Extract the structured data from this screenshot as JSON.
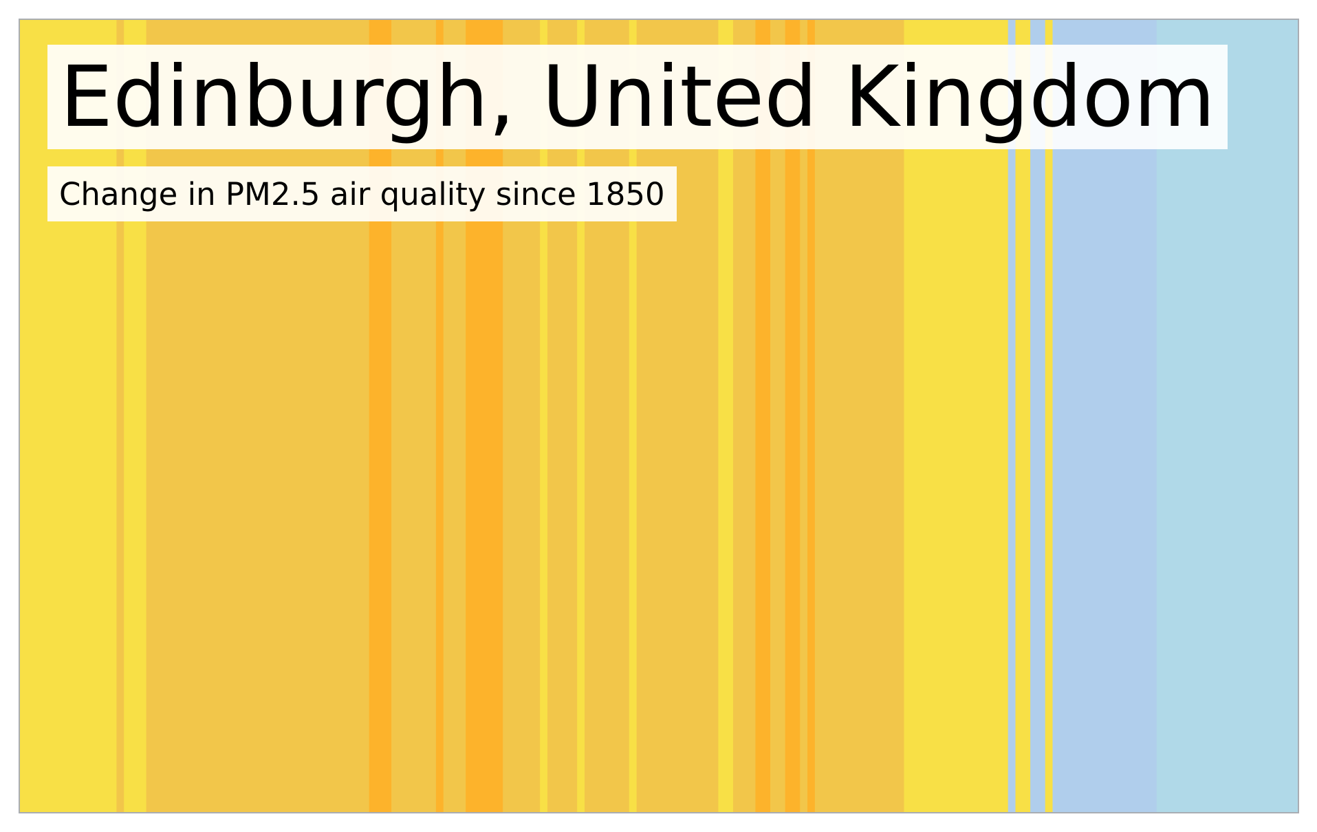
{
  "chart_data": {
    "type": "heatmap",
    "title": "Edinburgh, United Kingdom",
    "subtitle": "Change in PM2.5 air quality since 1850",
    "colors": {
      "yellow": "#f8e046",
      "ochre": "#f2c64a",
      "orange": "#fdb32b",
      "lightblue": "#b0ceec",
      "paleblue": "#b0d9e8",
      "frame": "#a9adb3"
    },
    "stripes": [
      {
        "from": 1850,
        "to": 1863,
        "color": "yellow"
      },
      {
        "from": 1863,
        "to": 1864,
        "color": "ochre"
      },
      {
        "from": 1864,
        "to": 1867,
        "color": "yellow"
      },
      {
        "from": 1867,
        "to": 1897,
        "color": "ochre"
      },
      {
        "from": 1897,
        "to": 1900,
        "color": "orange"
      },
      {
        "from": 1900,
        "to": 1906,
        "color": "ochre"
      },
      {
        "from": 1906,
        "to": 1907,
        "color": "orange"
      },
      {
        "from": 1907,
        "to": 1910,
        "color": "ochre"
      },
      {
        "from": 1910,
        "to": 1915,
        "color": "orange"
      },
      {
        "from": 1915,
        "to": 1920,
        "color": "ochre"
      },
      {
        "from": 1920,
        "to": 1921,
        "color": "yellow"
      },
      {
        "from": 1921,
        "to": 1925,
        "color": "ochre"
      },
      {
        "from": 1925,
        "to": 1926,
        "color": "yellow"
      },
      {
        "from": 1926,
        "to": 1932,
        "color": "ochre"
      },
      {
        "from": 1932,
        "to": 1933,
        "color": "yellow"
      },
      {
        "from": 1933,
        "to": 1944,
        "color": "ochre"
      },
      {
        "from": 1944,
        "to": 1946,
        "color": "yellow"
      },
      {
        "from": 1946,
        "to": 1949,
        "color": "ochre"
      },
      {
        "from": 1949,
        "to": 1951,
        "color": "orange"
      },
      {
        "from": 1951,
        "to": 1953,
        "color": "ochre"
      },
      {
        "from": 1953,
        "to": 1955,
        "color": "orange"
      },
      {
        "from": 1955,
        "to": 1956,
        "color": "ochre"
      },
      {
        "from": 1956,
        "to": 1957,
        "color": "orange"
      },
      {
        "from": 1957,
        "to": 1969,
        "color": "ochre"
      },
      {
        "from": 1969,
        "to": 1983,
        "color": "yellow"
      },
      {
        "from": 1983,
        "to": 1984,
        "color": "lightblue"
      },
      {
        "from": 1984,
        "to": 1986,
        "color": "yellow"
      },
      {
        "from": 1986,
        "to": 1988,
        "color": "lightblue"
      },
      {
        "from": 1988,
        "to": 1989,
        "color": "yellow"
      },
      {
        "from": 1989,
        "to": 2003,
        "color": "lightblue"
      },
      {
        "from": 2003,
        "to": 2006,
        "color": "paleblue"
      },
      {
        "from": 2006,
        "to": 2022,
        "color": "paleblue"
      }
    ],
    "xlim": [
      1850,
      2022
    ]
  }
}
